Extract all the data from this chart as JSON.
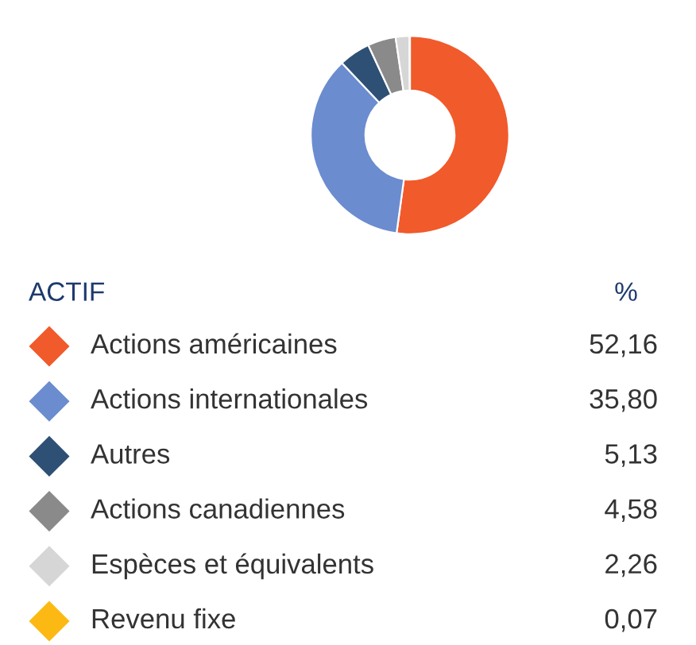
{
  "chart_data": {
    "type": "donut",
    "legend_title": "ACTIF",
    "annotations": [
      "%"
    ],
    "legend": "bottom",
    "categories": [
      "Actions américaines",
      "Actions internationales",
      "Autres",
      "Actions canadiennes",
      "Espèces et équivalents",
      "Revenu fixe"
    ],
    "values": [
      52.16,
      35.8,
      5.13,
      4.58,
      2.26,
      0.07
    ],
    "value_labels": [
      "52,16",
      "35,80",
      "5,13",
      "4,58",
      "2,26",
      "0,07"
    ],
    "colors": [
      "#f15a2b",
      "#6b8ccf",
      "#2e5075",
      "#8a8a8a",
      "#d6d6d6",
      "#fdb913"
    ]
  }
}
